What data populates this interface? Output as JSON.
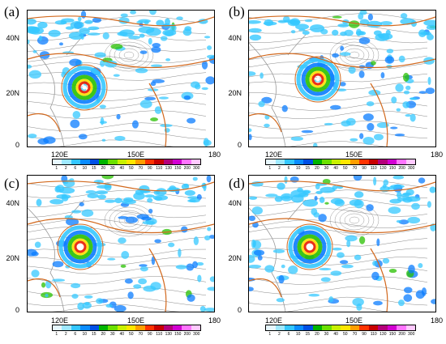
{
  "panels": [
    {
      "label": "(a)"
    },
    {
      "label": "(b)"
    },
    {
      "label": "(c)"
    },
    {
      "label": "(d)"
    }
  ],
  "axes": {
    "lat_labels": [
      "40N",
      "20N",
      "0"
    ],
    "lon_labels": [
      "120E",
      "150E",
      "180"
    ]
  },
  "colorbar": {
    "labels": [
      "1",
      "2",
      "6",
      "10",
      "15",
      "20",
      "30",
      "40",
      "50",
      "70",
      "90",
      "110",
      "130",
      "150",
      "200",
      "300"
    ],
    "colors": [
      "#e6f7ff",
      "#9ee8ff",
      "#33c6ff",
      "#0a8cff",
      "#0050e6",
      "#00b400",
      "#6be000",
      "#c8f000",
      "#ffe600",
      "#ff9e00",
      "#ff3300",
      "#c80000",
      "#b4007a",
      "#d200d2",
      "#ff73ff",
      "#ffc8ff"
    ]
  },
  "map_colors": {
    "rain_light": "#36c8ff",
    "rain_mid": "#0a7cff",
    "rain_green": "#28c000",
    "rain_yellow": "#ffe000",
    "rain_red": "#e81a00",
    "contour": "#d2691e",
    "streamline": "#555555",
    "coast": "#9a9a9a"
  }
}
